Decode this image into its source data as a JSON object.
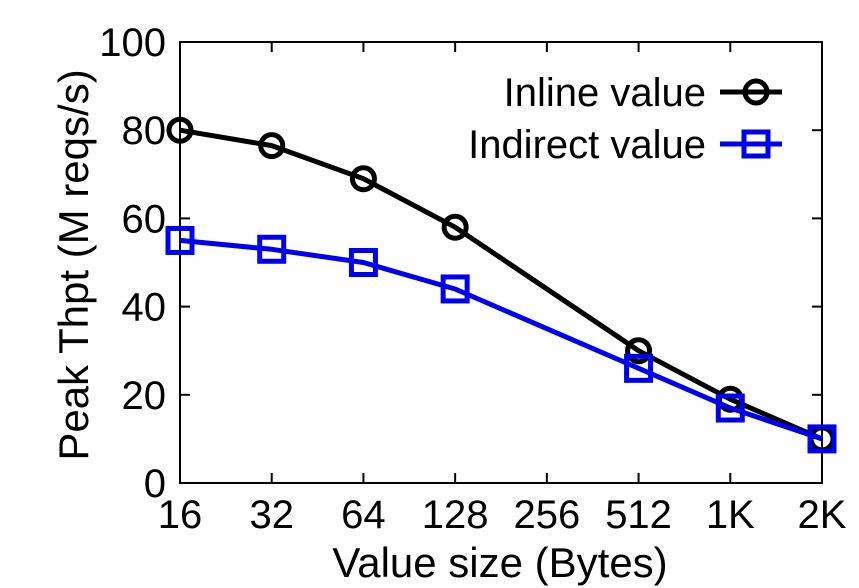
{
  "chart_data": {
    "type": "line",
    "title": "",
    "xlabel": "Value size (Bytes)",
    "ylabel": "Peak Thpt (M reqs/s)",
    "categories": [
      "16",
      "32",
      "64",
      "128",
      "256",
      "512",
      "1K",
      "2K"
    ],
    "ylim": [
      0,
      100
    ],
    "yticks": [
      0,
      20,
      40,
      60,
      80,
      100
    ],
    "grid": false,
    "legend_position": "top-right",
    "series": [
      {
        "name": "Inline value",
        "color": "#000000",
        "marker": "circle",
        "x": [
          "16",
          "32",
          "64",
          "128",
          "512",
          "1K",
          "2K"
        ],
        "values": [
          80,
          76.5,
          69,
          58,
          30,
          19,
          10
        ]
      },
      {
        "name": "Indirect value",
        "color": "#0000ee",
        "marker": "square",
        "x": [
          "16",
          "32",
          "64",
          "128",
          "512",
          "1K",
          "2K"
        ],
        "values": [
          55,
          53,
          50,
          44,
          26,
          17,
          10
        ]
      }
    ]
  }
}
